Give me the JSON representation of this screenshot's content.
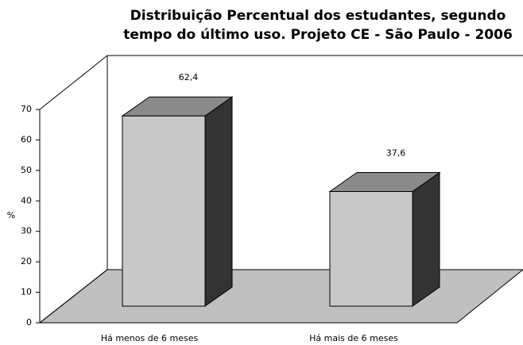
{
  "chart_data": {
    "type": "bar3d",
    "title": [
      "Distribuição Percentual dos estudantes, segundo",
      "tempo do último uso. Projeto CE - São Paulo - 2006"
    ],
    "categories": [
      "Há menos de 6 meses",
      "Há mais de 6 meses"
    ],
    "values": [
      62.4,
      37.6
    ],
    "value_labels": [
      "62,4",
      "37,6"
    ],
    "y_label": "%",
    "ylim": [
      0,
      70
    ],
    "yticks": [
      0,
      10,
      20,
      30,
      40,
      50,
      60,
      70
    ],
    "color": "#c8c8c8"
  }
}
